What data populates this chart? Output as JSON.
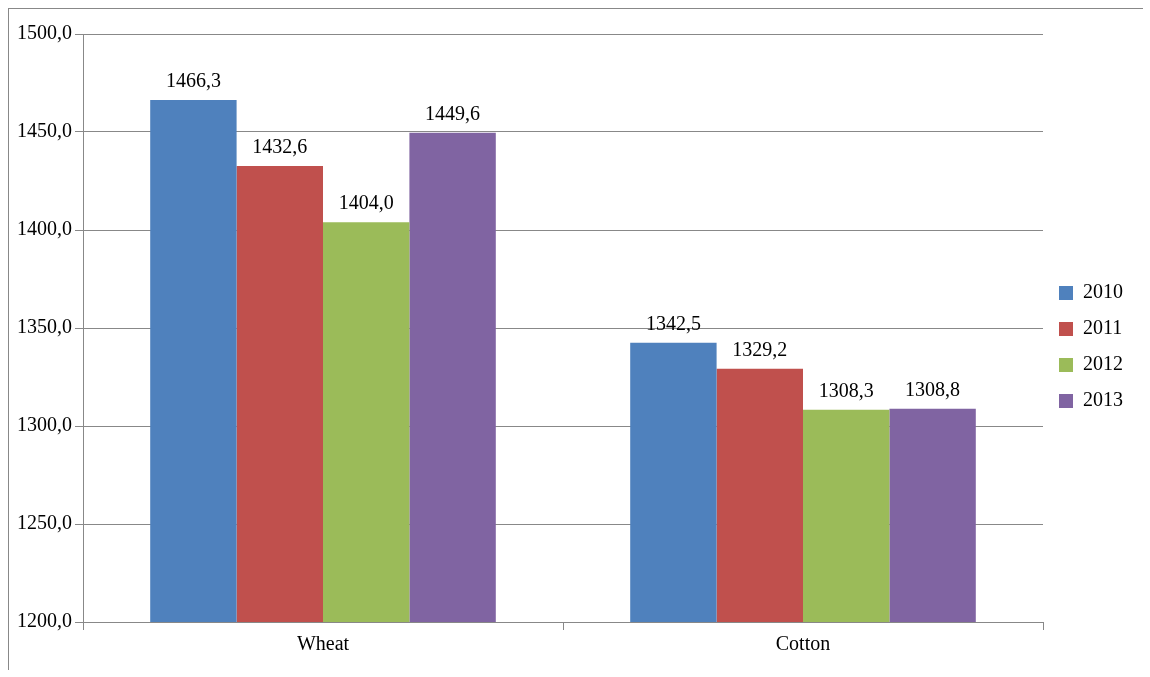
{
  "chart_data": {
    "type": "bar",
    "categories": [
      "Wheat",
      "Cotton"
    ],
    "series": [
      {
        "name": "2010",
        "color": "#4f81bd",
        "values": [
          1466.3,
          1342.5
        ],
        "value_labels": [
          "1466,3",
          "1342,5"
        ]
      },
      {
        "name": "2011",
        "color": "#c0504d",
        "values": [
          1432.6,
          1329.2
        ],
        "value_labels": [
          "1432,6",
          "1329,2"
        ]
      },
      {
        "name": "2012",
        "color": "#9bbb59",
        "values": [
          1404.0,
          1308.3
        ],
        "value_labels": [
          "1404,0",
          "1308,3"
        ]
      },
      {
        "name": "2013",
        "color": "#8064a2",
        "values": [
          1449.6,
          1308.8
        ],
        "value_labels": [
          "1449,6",
          "1308,8"
        ]
      }
    ],
    "ylim": [
      1200,
      1500
    ],
    "yticks": [
      {
        "value": 1200,
        "label": "1200,0"
      },
      {
        "value": 1250,
        "label": "1250,0"
      },
      {
        "value": 1300,
        "label": "1300,0"
      },
      {
        "value": 1350,
        "label": "1350,0"
      },
      {
        "value": 1400,
        "label": "1400,0"
      },
      {
        "value": 1450,
        "label": "1450,0"
      },
      {
        "value": 1500,
        "label": "1500,0"
      }
    ],
    "grid": "y",
    "legend": "right"
  }
}
